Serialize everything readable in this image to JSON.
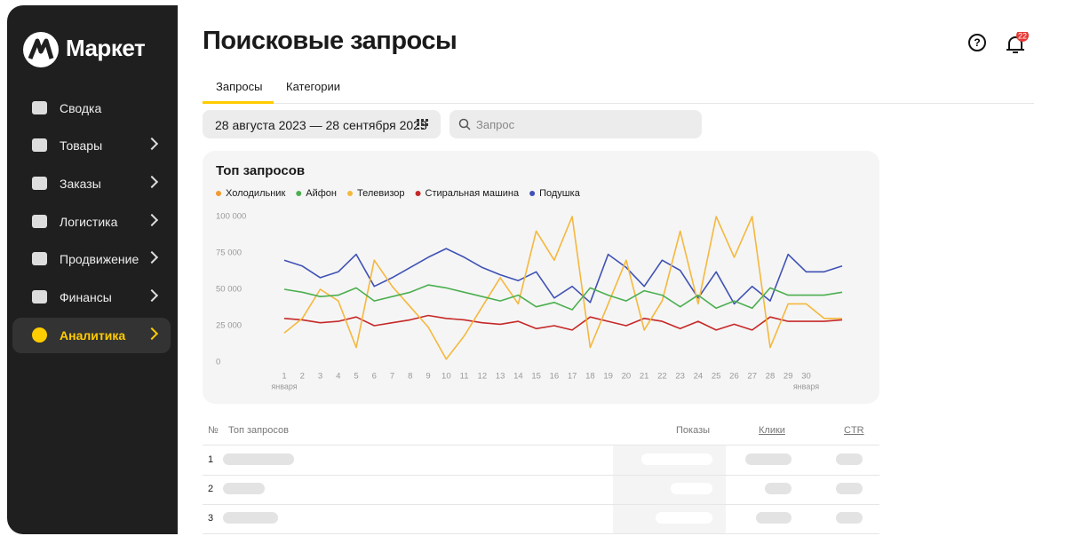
{
  "sidebar": {
    "logo": "Маркет",
    "items": [
      "Сводка",
      "Товары",
      "Заказы",
      "Логистика",
      "Продвижение",
      "Финансы",
      "Аналитика"
    ]
  },
  "header": {
    "title": "Поисковые запросы",
    "notifications": "22"
  },
  "tabs": [
    "Запросы",
    "Категории"
  ],
  "filters": {
    "date_range": "28 августа 2023 — 28 сентября 2023",
    "search_placeholder": "Запрос"
  },
  "chart_data": {
    "type": "line",
    "title": "Топ запросов",
    "categories": [
      "1",
      "2",
      "3",
      "4",
      "5",
      "6",
      "7",
      "8",
      "9",
      "10",
      "11",
      "12",
      "13",
      "14",
      "15",
      "16",
      "17",
      "18",
      "19",
      "20",
      "21",
      "22",
      "23",
      "24",
      "25",
      "26",
      "27",
      "28",
      "29",
      "30",
      null,
      null
    ],
    "category_sublabels": [
      "января",
      null,
      null,
      null,
      null,
      null,
      null,
      null,
      null,
      null,
      null,
      null,
      null,
      null,
      null,
      null,
      null,
      null,
      null,
      null,
      null,
      null,
      null,
      null,
      null,
      null,
      null,
      null,
      null,
      "января",
      null,
      null
    ],
    "series": [
      {
        "name": "Холодильник",
        "color": "#f29a2e"
      },
      {
        "name": "Айфон",
        "color": "#4caf50",
        "values": [
          50,
          48,
          45,
          46,
          51,
          42,
          45,
          48,
          53,
          51,
          48,
          45,
          42,
          46,
          38,
          41,
          36,
          51,
          46,
          42,
          49,
          46,
          38,
          46,
          37,
          42,
          37,
          51,
          46,
          46,
          46,
          48
        ]
      },
      {
        "name": "Телевизор",
        "color": "#f5b83d",
        "values": [
          20,
          30,
          50,
          42,
          10,
          70,
          52,
          38,
          24,
          2,
          18,
          38,
          58,
          40,
          90,
          70,
          100,
          10,
          40,
          70,
          22,
          42,
          90,
          40,
          100,
          72,
          100,
          10,
          40,
          40,
          30,
          30
        ]
      },
      {
        "name": "Стиральная машина",
        "color": "#c62828",
        "values": [
          30,
          29,
          27,
          28,
          31,
          25,
          27,
          29,
          32,
          30,
          29,
          27,
          26,
          28,
          23,
          25,
          22,
          31,
          28,
          25,
          30,
          28,
          23,
          28,
          22,
          26,
          22,
          31,
          28,
          28,
          28,
          29
        ]
      },
      {
        "name": "Подушка",
        "color": "#3f51b5",
        "values": [
          70,
          66,
          58,
          62,
          74,
          52,
          58,
          65,
          72,
          78,
          72,
          65,
          60,
          56,
          62,
          44,
          52,
          41,
          74,
          65,
          52,
          70,
          63,
          44,
          62,
          40,
          52,
          42,
          74,
          62,
          62,
          66
        ]
      }
    ],
    "ylim": [
      0,
      100
    ],
    "yticks": [
      0,
      {
        "value": 25,
        "label": "25 000"
      },
      {
        "value": 50,
        "label": "50 000"
      },
      {
        "value": 75,
        "label": "75 000"
      },
      {
        "value": 100,
        "label": "100 000"
      }
    ],
    "grid": false
  },
  "table": {
    "headers": [
      "№",
      "Топ запросов",
      "Показы",
      "Клики",
      "CTR"
    ],
    "rows": [
      "1",
      "2",
      "3"
    ]
  }
}
